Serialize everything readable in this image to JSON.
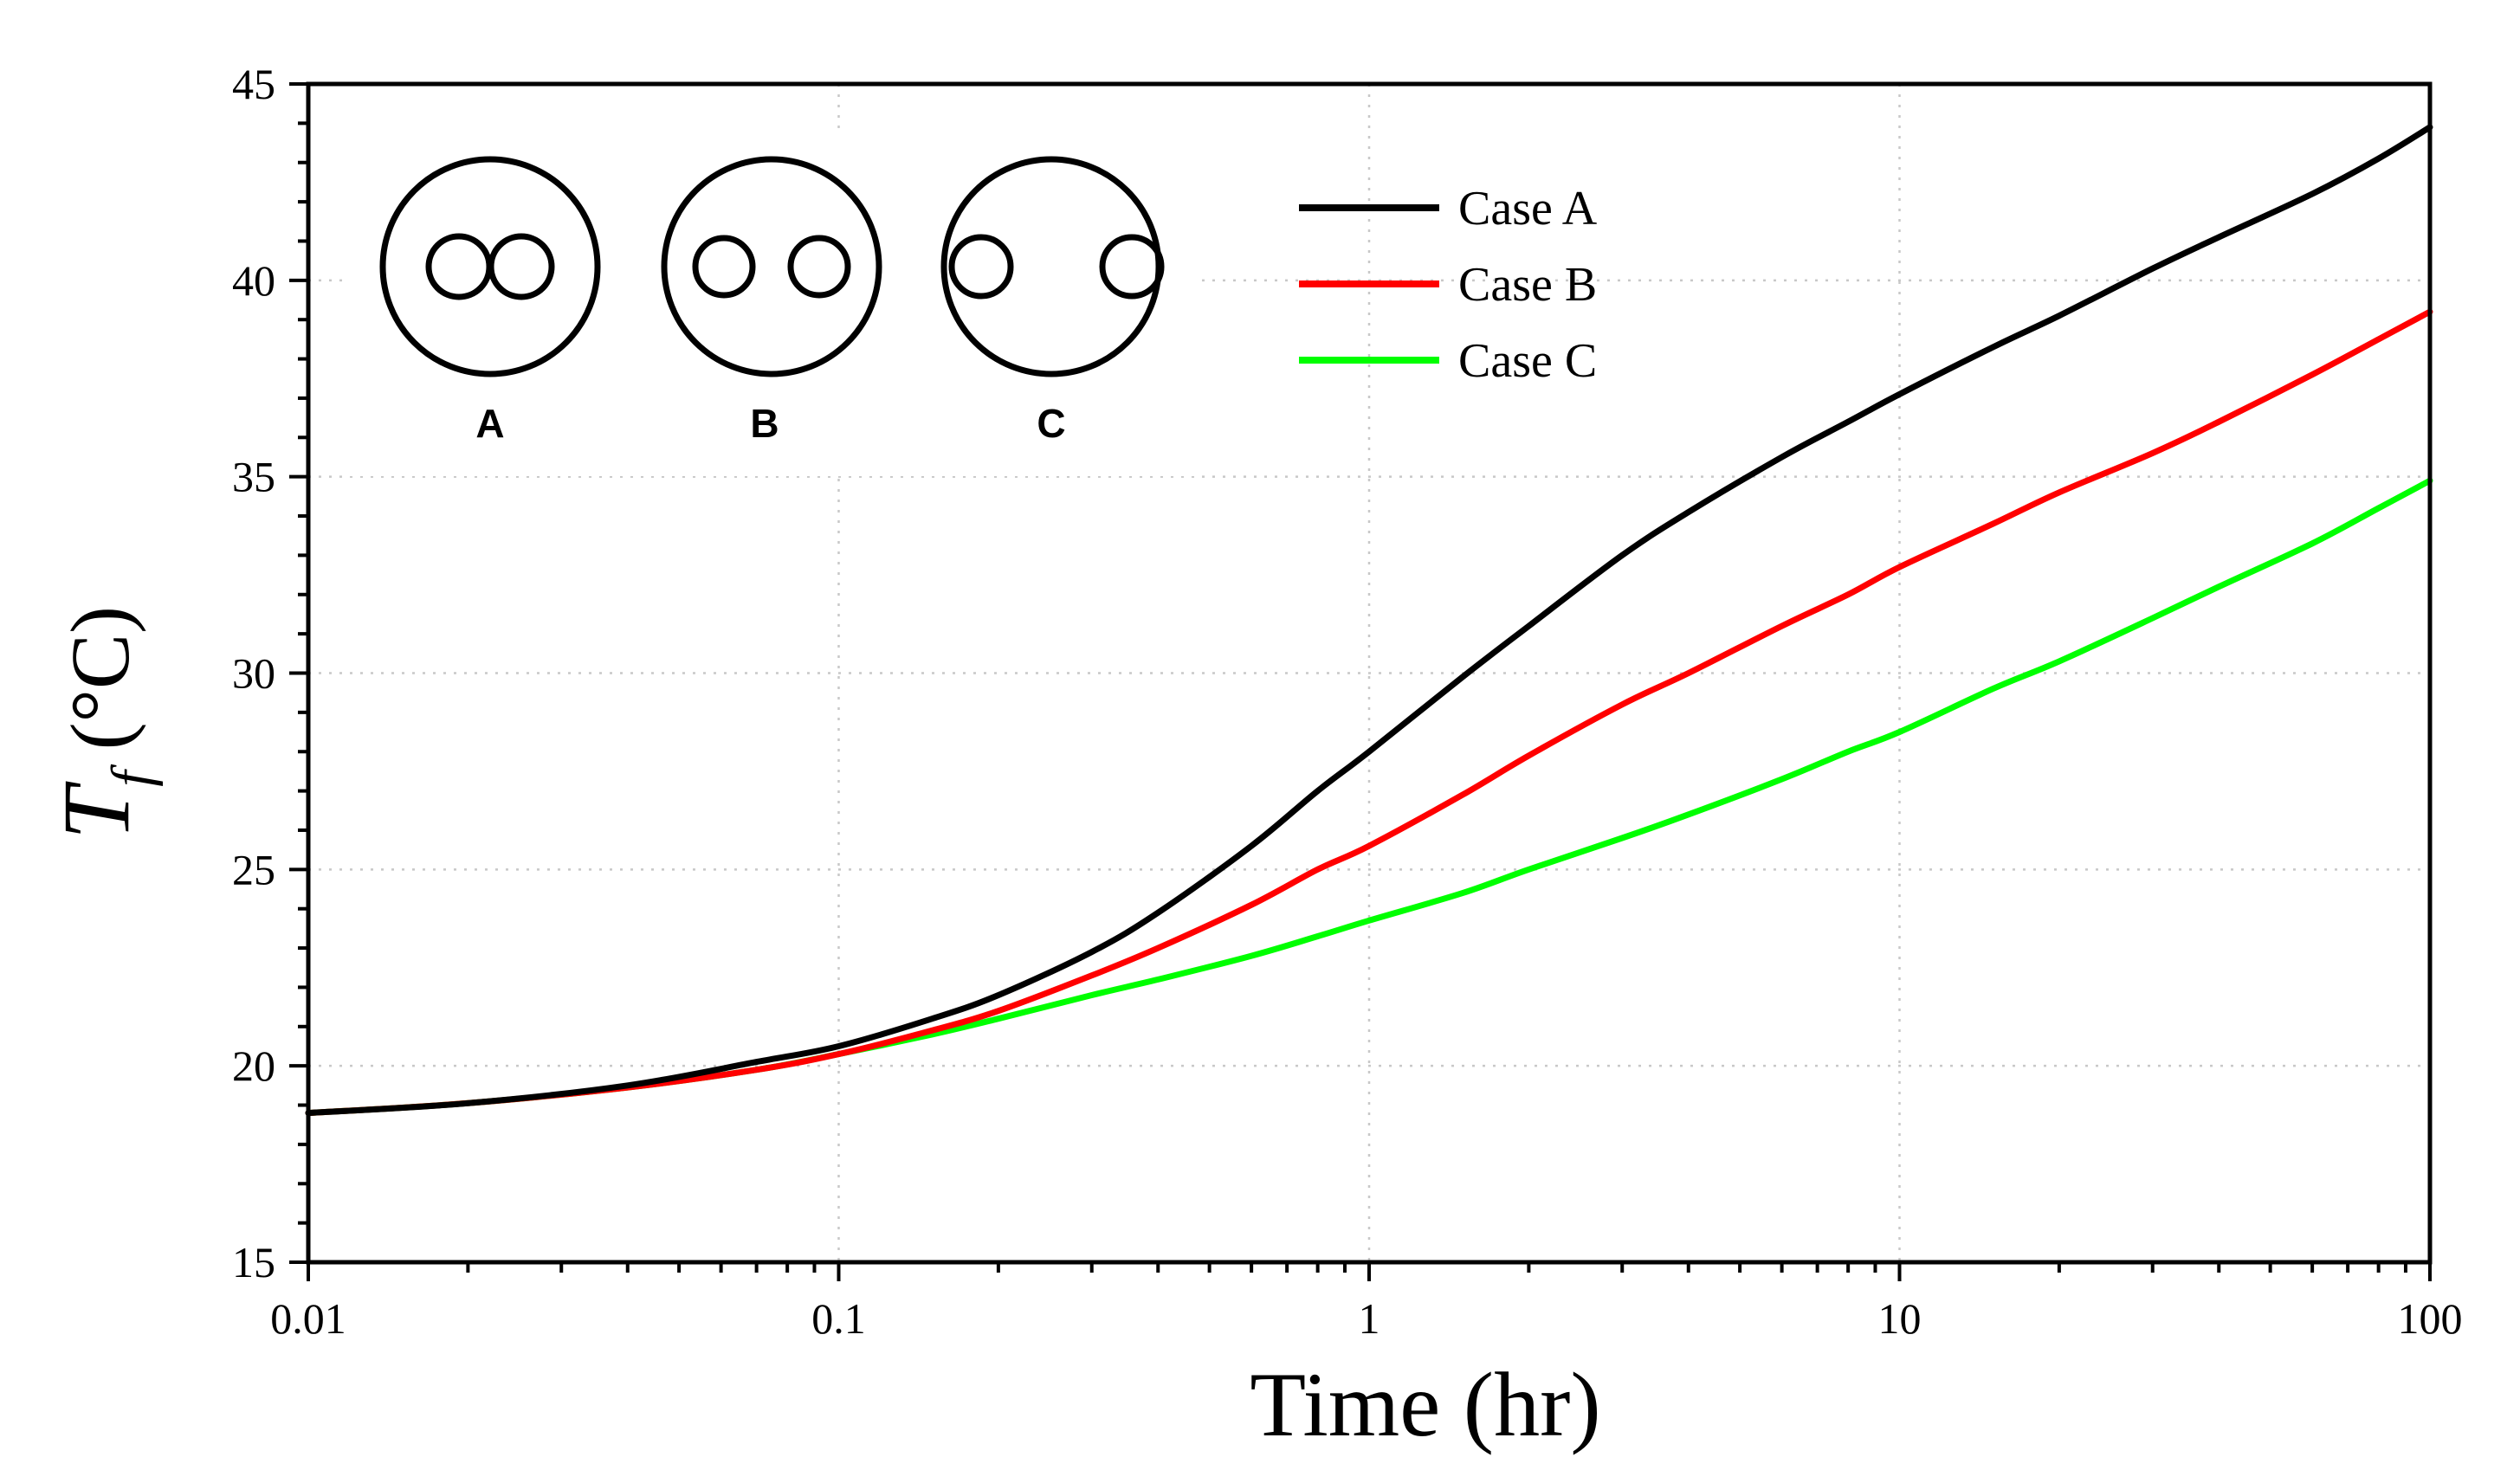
{
  "chart_data": {
    "type": "line",
    "title": "",
    "xlabel": "Time (hr)",
    "ylabel_symbol": "T",
    "ylabel_subscript": "f",
    "ylabel_unit": " (°C)",
    "xscale": "log",
    "xlim": [
      0.01,
      100
    ],
    "ylim": [
      15,
      45
    ],
    "grid": true,
    "legend_position": "top-center",
    "x_ticks": [
      {
        "value": 0.01,
        "label": "0.01"
      },
      {
        "value": 0.1,
        "label": "0.1"
      },
      {
        "value": 1,
        "label": "1"
      },
      {
        "value": 10,
        "label": "10"
      },
      {
        "value": 100,
        "label": "100"
      }
    ],
    "y_ticks": [
      {
        "value": 15,
        "label": "15"
      },
      {
        "value": 20,
        "label": "20"
      },
      {
        "value": 25,
        "label": "25"
      },
      {
        "value": 30,
        "label": "30"
      },
      {
        "value": 35,
        "label": "35"
      },
      {
        "value": 40,
        "label": "40"
      },
      {
        "value": 45,
        "label": "45"
      }
    ],
    "series": [
      {
        "name": "Case A",
        "color": "#000000",
        "x": [
          0.01,
          0.02,
          0.04,
          0.07,
          0.1,
          0.15,
          0.2,
          0.3,
          0.4,
          0.6,
          0.8,
          1,
          1.5,
          2,
          3,
          4,
          6,
          8,
          10,
          15,
          20,
          30,
          40,
          60,
          80,
          100
        ],
        "y": [
          18.8,
          19.05,
          19.5,
          20.1,
          20.5,
          21.2,
          21.8,
          22.9,
          23.9,
          25.6,
          27.0,
          28.0,
          29.9,
          31.2,
          33.0,
          34.1,
          35.5,
          36.4,
          37.1,
          38.3,
          39.1,
          40.3,
          41.1,
          42.2,
          43.1,
          43.9
        ]
      },
      {
        "name": "Case B",
        "color": "#ff0000",
        "x": [
          0.01,
          0.02,
          0.04,
          0.07,
          0.1,
          0.15,
          0.2,
          0.3,
          0.4,
          0.6,
          0.8,
          1,
          1.5,
          2,
          3,
          4,
          6,
          8,
          10,
          15,
          20,
          30,
          40,
          60,
          80,
          100
        ],
        "y": [
          18.8,
          19.05,
          19.45,
          19.9,
          20.3,
          20.9,
          21.4,
          22.3,
          23.0,
          24.1,
          25.0,
          25.6,
          26.9,
          27.9,
          29.2,
          30.0,
          31.2,
          32.0,
          32.7,
          33.8,
          34.6,
          35.6,
          36.4,
          37.6,
          38.5,
          39.2
        ]
      },
      {
        "name": "Case C",
        "color": "#00ff00",
        "x": [
          0.01,
          0.02,
          0.04,
          0.07,
          0.1,
          0.15,
          0.2,
          0.3,
          0.4,
          0.6,
          0.8,
          1,
          1.5,
          2,
          3,
          4,
          6,
          8,
          10,
          15,
          20,
          30,
          40,
          60,
          80,
          100
        ],
        "y": [
          18.8,
          19.05,
          19.45,
          19.9,
          20.3,
          20.8,
          21.2,
          21.8,
          22.2,
          22.8,
          23.3,
          23.7,
          24.4,
          25.0,
          25.8,
          26.4,
          27.3,
          28.0,
          28.5,
          29.6,
          30.3,
          31.4,
          32.2,
          33.3,
          34.2,
          34.9
        ]
      }
    ],
    "inset": {
      "labels": [
        "A",
        "B",
        "C"
      ]
    }
  }
}
